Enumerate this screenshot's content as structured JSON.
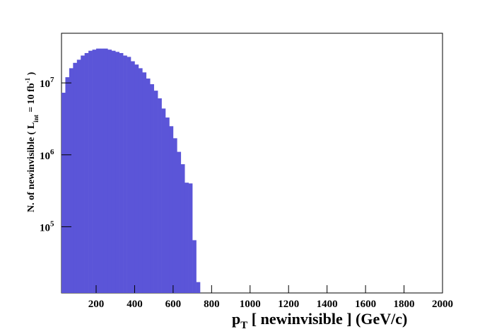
{
  "chart_data": {
    "type": "histogram",
    "xlabel": {
      "main": "p",
      "sub": "T",
      "rest": " [ newinvisible ] (GeV/c)"
    },
    "ylabel": {
      "a": "N. of newinvisible ( L",
      "sub": "int",
      "b": " = 10 fb",
      "sup": "-1",
      "c": " )"
    },
    "bins": [
      20,
      40,
      60,
      80,
      100,
      120,
      140,
      160,
      180,
      200,
      220,
      240,
      260,
      280,
      300,
      320,
      340,
      360,
      380,
      400,
      420,
      440,
      460,
      480,
      500,
      520,
      540,
      560,
      580,
      600,
      620,
      640,
      660,
      680,
      700,
      720,
      740
    ],
    "values": [
      7300000,
      12000000,
      16000000,
      19000000,
      21000000,
      24000000,
      26000000,
      28000000,
      29000000,
      30000000,
      30000000,
      30000000,
      29000000,
      28000000,
      27000000,
      26000000,
      24000000,
      23000000,
      20000000,
      18000000,
      16000000,
      14000000,
      11500000,
      9600000,
      7800000,
      6100000,
      4400000,
      3300000,
      2500000,
      1700000,
      1100000,
      740000,
      410000,
      400000,
      65000,
      17000
    ],
    "color": "#5b55d8",
    "xlim": [
      20,
      2000
    ],
    "xticks": [
      200,
      400,
      600,
      800,
      1000,
      1200,
      1400,
      1600,
      1800,
      2000
    ],
    "ylim": [
      12000,
      49000000
    ],
    "yticks": [
      {
        "value": 100000,
        "label": "10",
        "exp": "5"
      },
      {
        "value": 1000000,
        "label": "10",
        "exp": "6"
      },
      {
        "value": 10000000,
        "label": "10",
        "exp": "7"
      }
    ],
    "log_y": true
  }
}
